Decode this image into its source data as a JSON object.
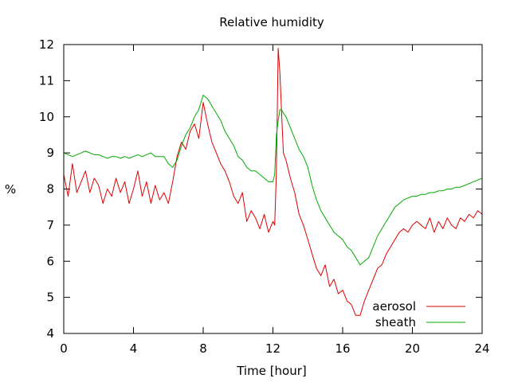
{
  "chart_data": {
    "type": "line",
    "title": "Relative humidity",
    "xlabel": "Time [hour]",
    "ylabel": "%",
    "xlim": [
      0,
      24
    ],
    "ylim": [
      4,
      12
    ],
    "xticks": [
      0,
      4,
      8,
      12,
      16,
      20,
      24
    ],
    "yticks": [
      4,
      5,
      6,
      7,
      8,
      9,
      10,
      11,
      12
    ],
    "grid": false,
    "legend_position": "bottom-right",
    "series": [
      {
        "name": "aerosol",
        "color": "#dd0000",
        "x": [
          0.0,
          0.25,
          0.5,
          0.75,
          1.0,
          1.25,
          1.5,
          1.75,
          2.0,
          2.25,
          2.5,
          2.75,
          3.0,
          3.25,
          3.5,
          3.75,
          4.0,
          4.25,
          4.5,
          4.75,
          5.0,
          5.25,
          5.5,
          5.75,
          6.0,
          6.25,
          6.5,
          6.75,
          7.0,
          7.25,
          7.5,
          7.75,
          8.0,
          8.25,
          8.5,
          8.75,
          9.0,
          9.25,
          9.5,
          9.75,
          10.0,
          10.25,
          10.5,
          10.75,
          11.0,
          11.25,
          11.5,
          11.75,
          12.0,
          12.1,
          12.2,
          12.3,
          12.4,
          12.5,
          12.6,
          12.75,
          13.0,
          13.25,
          13.5,
          13.75,
          14.0,
          14.25,
          14.5,
          14.75,
          15.0,
          15.25,
          15.5,
          15.75,
          16.0,
          16.25,
          16.5,
          16.75,
          17.0,
          17.25,
          17.5,
          17.75,
          18.0,
          18.25,
          18.5,
          18.75,
          19.0,
          19.25,
          19.5,
          19.75,
          20.0,
          20.25,
          20.5,
          20.75,
          21.0,
          21.25,
          21.5,
          21.75,
          22.0,
          22.25,
          22.5,
          22.75,
          23.0,
          23.25,
          23.5,
          23.75,
          24.0
        ],
        "y": [
          8.4,
          7.8,
          8.7,
          7.9,
          8.2,
          8.5,
          7.9,
          8.3,
          8.1,
          7.6,
          8.0,
          7.8,
          8.3,
          7.9,
          8.2,
          7.6,
          8.0,
          8.5,
          7.8,
          8.2,
          7.6,
          8.1,
          7.7,
          7.9,
          7.6,
          8.2,
          8.9,
          9.3,
          9.1,
          9.6,
          9.8,
          9.4,
          10.4,
          9.8,
          9.3,
          9.0,
          8.7,
          8.5,
          8.2,
          7.8,
          7.6,
          7.9,
          7.1,
          7.4,
          7.2,
          6.9,
          7.3,
          6.8,
          7.1,
          7.0,
          8.5,
          11.9,
          11.2,
          10.1,
          9.0,
          8.8,
          8.3,
          7.9,
          7.3,
          7.0,
          6.6,
          6.2,
          5.8,
          5.6,
          5.9,
          5.3,
          5.5,
          5.1,
          5.2,
          4.9,
          4.8,
          4.5,
          4.5,
          4.9,
          5.2,
          5.5,
          5.8,
          5.9,
          6.2,
          6.4,
          6.6,
          6.8,
          6.9,
          6.8,
          7.0,
          7.1,
          7.0,
          6.9,
          7.2,
          6.8,
          7.1,
          6.9,
          7.2,
          7.0,
          6.9,
          7.2,
          7.1,
          7.3,
          7.2,
          7.4,
          7.3
        ]
      },
      {
        "name": "sheath",
        "color": "#00aa00",
        "x": [
          0.0,
          0.25,
          0.5,
          0.75,
          1.0,
          1.25,
          1.5,
          1.75,
          2.0,
          2.25,
          2.5,
          2.75,
          3.0,
          3.25,
          3.5,
          3.75,
          4.0,
          4.25,
          4.5,
          4.75,
          5.0,
          5.25,
          5.5,
          5.75,
          6.0,
          6.25,
          6.5,
          6.75,
          7.0,
          7.25,
          7.5,
          7.75,
          8.0,
          8.25,
          8.5,
          8.75,
          9.0,
          9.25,
          9.5,
          9.75,
          10.0,
          10.25,
          10.5,
          10.75,
          11.0,
          11.25,
          11.5,
          11.75,
          12.0,
          12.1,
          12.2,
          12.3,
          12.4,
          12.5,
          12.6,
          12.75,
          13.0,
          13.25,
          13.5,
          13.75,
          14.0,
          14.25,
          14.5,
          14.75,
          15.0,
          15.25,
          15.5,
          15.75,
          16.0,
          16.25,
          16.5,
          16.75,
          17.0,
          17.25,
          17.5,
          17.75,
          18.0,
          18.25,
          18.5,
          18.75,
          19.0,
          19.25,
          19.5,
          19.75,
          20.0,
          20.25,
          20.5,
          20.75,
          21.0,
          21.25,
          21.5,
          21.75,
          22.0,
          22.25,
          22.5,
          22.75,
          23.0,
          23.25,
          23.5,
          23.75,
          24.0
        ],
        "y": [
          9.0,
          8.95,
          8.9,
          8.95,
          9.0,
          9.05,
          9.0,
          8.95,
          8.95,
          8.9,
          8.85,
          8.9,
          8.9,
          8.85,
          8.9,
          8.85,
          8.9,
          8.95,
          8.9,
          8.95,
          9.0,
          8.9,
          8.9,
          8.9,
          8.7,
          8.6,
          8.8,
          9.2,
          9.5,
          9.7,
          10.0,
          10.2,
          10.6,
          10.5,
          10.3,
          10.1,
          9.9,
          9.6,
          9.4,
          9.2,
          8.9,
          8.8,
          8.6,
          8.5,
          8.5,
          8.4,
          8.3,
          8.2,
          8.2,
          8.4,
          9.5,
          9.9,
          10.2,
          10.2,
          10.1,
          10.0,
          9.7,
          9.4,
          9.1,
          8.9,
          8.6,
          8.1,
          7.7,
          7.4,
          7.2,
          7.0,
          6.8,
          6.7,
          6.6,
          6.4,
          6.3,
          6.1,
          5.9,
          6.0,
          6.1,
          6.4,
          6.7,
          6.9,
          7.1,
          7.3,
          7.5,
          7.6,
          7.7,
          7.75,
          7.8,
          7.8,
          7.85,
          7.85,
          7.9,
          7.9,
          7.95,
          7.95,
          8.0,
          8.0,
          8.05,
          8.05,
          8.1,
          8.15,
          8.2,
          8.25,
          8.3
        ]
      }
    ]
  }
}
